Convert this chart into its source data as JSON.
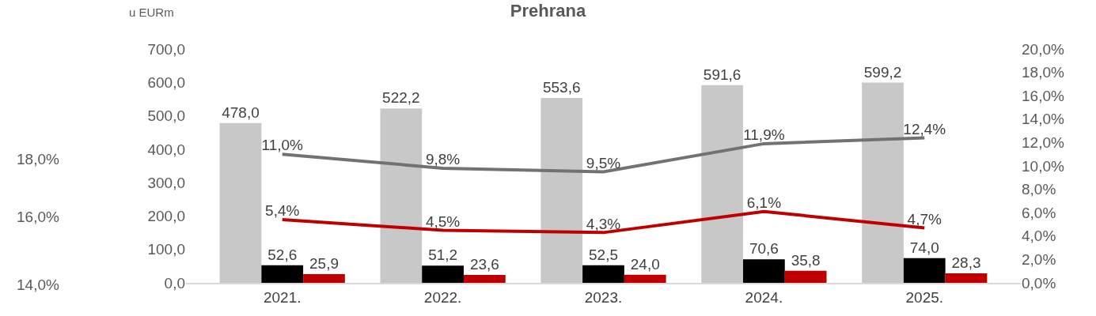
{
  "chart_data": {
    "type": "bar",
    "title": "Prehrana",
    "ylabel": "u EURm",
    "categories": [
      "2021.",
      "2022.",
      "2023.",
      "2024.",
      "2025."
    ],
    "series": [
      {
        "color": "#c8c8c8",
        "values": [
          478.0,
          522.2,
          553.6,
          591.6,
          599.2
        ],
        "value_labels": [
          "478,0",
          "522,2",
          "553,6",
          "591,6",
          "599,2"
        ]
      },
      {
        "color": "#000000",
        "values": [
          52.6,
          51.2,
          52.5,
          70.6,
          74.0
        ],
        "value_labels": [
          "52,6",
          "51,2",
          "52,5",
          "70,6",
          "74,0"
        ]
      },
      {
        "color": "#c00000",
        "values": [
          25.9,
          23.6,
          24.0,
          35.8,
          28.3
        ],
        "value_labels": [
          "25,9",
          "23,6",
          "24,0",
          "35,8",
          "28,3"
        ]
      },
      {
        "type": "line",
        "axis": "y2",
        "color": "#767171",
        "values": [
          11.0,
          9.8,
          9.5,
          11.9,
          12.4
        ],
        "value_labels": [
          "11,0%",
          "9,8%",
          "9,5%",
          "11,9%",
          "12,4%"
        ]
      },
      {
        "type": "line",
        "axis": "y2",
        "color": "#c00000",
        "values": [
          5.4,
          4.5,
          4.3,
          6.1,
          4.7
        ],
        "value_labels": [
          "5,4%",
          "4,5%",
          "4,3%",
          "6,1%",
          "4,7%"
        ]
      }
    ],
    "ylim": [
      0,
      700
    ],
    "yticks": [
      {
        "value": 0,
        "label": "0,0"
      },
      {
        "value": 100,
        "label": "100,0"
      },
      {
        "value": 200,
        "label": "200,0"
      },
      {
        "value": 300,
        "label": "300,0"
      },
      {
        "value": 400,
        "label": "400,0"
      },
      {
        "value": 500,
        "label": "500,0"
      },
      {
        "value": 600,
        "label": "600,0"
      },
      {
        "value": 700,
        "label": "700,0"
      }
    ],
    "y2lim": [
      0,
      20
    ],
    "y2ticks": [
      {
        "value": 0,
        "label": "0,0%"
      },
      {
        "value": 2,
        "label": "2,0%"
      },
      {
        "value": 4,
        "label": "4,0%"
      },
      {
        "value": 6,
        "label": "6,0%"
      },
      {
        "value": 8,
        "label": "8,0%"
      },
      {
        "value": 10,
        "label": "10,0%"
      },
      {
        "value": 12,
        "label": "12,0%"
      },
      {
        "value": 14,
        "label": "14,0%"
      },
      {
        "value": 16,
        "label": "16,0%"
      },
      {
        "value": 18,
        "label": "18,0%"
      },
      {
        "value": 20,
        "label": "20,0%"
      }
    ],
    "annotations": [
      "18,0%",
      "16,0%",
      "14,0%"
    ],
    "legend": false,
    "marker": "none",
    "line_style": "solid"
  }
}
